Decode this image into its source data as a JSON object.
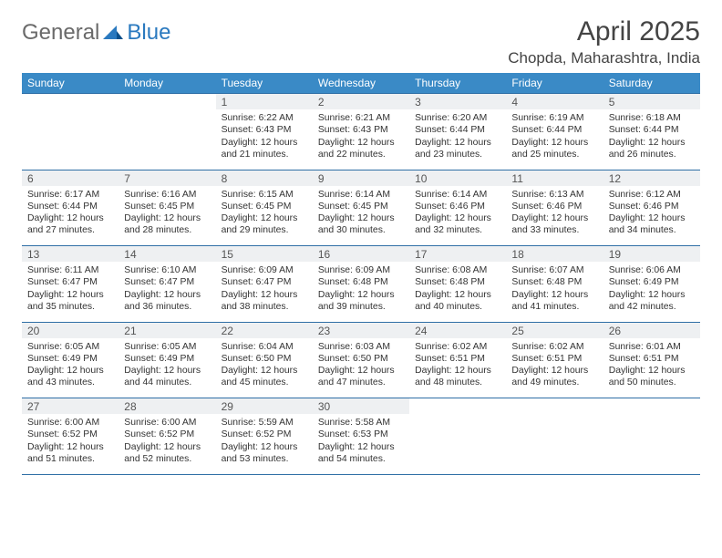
{
  "logo": {
    "text1": "General",
    "text2": "Blue"
  },
  "title": "April 2025",
  "location": "Chopda, Maharashtra, India",
  "colors": {
    "header_bg": "#3a8ac6",
    "rule": "#2f6fa6",
    "daynum_bg": "#eef0f2",
    "logo_gray": "#6a6a6a",
    "logo_blue": "#2a79bf"
  },
  "weekdays": [
    "Sunday",
    "Monday",
    "Tuesday",
    "Wednesday",
    "Thursday",
    "Friday",
    "Saturday"
  ],
  "weeks": [
    [
      null,
      null,
      {
        "n": "1",
        "sunrise": "6:22 AM",
        "sunset": "6:43 PM",
        "daylight": "12 hours and 21 minutes."
      },
      {
        "n": "2",
        "sunrise": "6:21 AM",
        "sunset": "6:43 PM",
        "daylight": "12 hours and 22 minutes."
      },
      {
        "n": "3",
        "sunrise": "6:20 AM",
        "sunset": "6:44 PM",
        "daylight": "12 hours and 23 minutes."
      },
      {
        "n": "4",
        "sunrise": "6:19 AM",
        "sunset": "6:44 PM",
        "daylight": "12 hours and 25 minutes."
      },
      {
        "n": "5",
        "sunrise": "6:18 AM",
        "sunset": "6:44 PM",
        "daylight": "12 hours and 26 minutes."
      }
    ],
    [
      {
        "n": "6",
        "sunrise": "6:17 AM",
        "sunset": "6:44 PM",
        "daylight": "12 hours and 27 minutes."
      },
      {
        "n": "7",
        "sunrise": "6:16 AM",
        "sunset": "6:45 PM",
        "daylight": "12 hours and 28 minutes."
      },
      {
        "n": "8",
        "sunrise": "6:15 AM",
        "sunset": "6:45 PM",
        "daylight": "12 hours and 29 minutes."
      },
      {
        "n": "9",
        "sunrise": "6:14 AM",
        "sunset": "6:45 PM",
        "daylight": "12 hours and 30 minutes."
      },
      {
        "n": "10",
        "sunrise": "6:14 AM",
        "sunset": "6:46 PM",
        "daylight": "12 hours and 32 minutes."
      },
      {
        "n": "11",
        "sunrise": "6:13 AM",
        "sunset": "6:46 PM",
        "daylight": "12 hours and 33 minutes."
      },
      {
        "n": "12",
        "sunrise": "6:12 AM",
        "sunset": "6:46 PM",
        "daylight": "12 hours and 34 minutes."
      }
    ],
    [
      {
        "n": "13",
        "sunrise": "6:11 AM",
        "sunset": "6:47 PM",
        "daylight": "12 hours and 35 minutes."
      },
      {
        "n": "14",
        "sunrise": "6:10 AM",
        "sunset": "6:47 PM",
        "daylight": "12 hours and 36 minutes."
      },
      {
        "n": "15",
        "sunrise": "6:09 AM",
        "sunset": "6:47 PM",
        "daylight": "12 hours and 38 minutes."
      },
      {
        "n": "16",
        "sunrise": "6:09 AM",
        "sunset": "6:48 PM",
        "daylight": "12 hours and 39 minutes."
      },
      {
        "n": "17",
        "sunrise": "6:08 AM",
        "sunset": "6:48 PM",
        "daylight": "12 hours and 40 minutes."
      },
      {
        "n": "18",
        "sunrise": "6:07 AM",
        "sunset": "6:48 PM",
        "daylight": "12 hours and 41 minutes."
      },
      {
        "n": "19",
        "sunrise": "6:06 AM",
        "sunset": "6:49 PM",
        "daylight": "12 hours and 42 minutes."
      }
    ],
    [
      {
        "n": "20",
        "sunrise": "6:05 AM",
        "sunset": "6:49 PM",
        "daylight": "12 hours and 43 minutes."
      },
      {
        "n": "21",
        "sunrise": "6:05 AM",
        "sunset": "6:49 PM",
        "daylight": "12 hours and 44 minutes."
      },
      {
        "n": "22",
        "sunrise": "6:04 AM",
        "sunset": "6:50 PM",
        "daylight": "12 hours and 45 minutes."
      },
      {
        "n": "23",
        "sunrise": "6:03 AM",
        "sunset": "6:50 PM",
        "daylight": "12 hours and 47 minutes."
      },
      {
        "n": "24",
        "sunrise": "6:02 AM",
        "sunset": "6:51 PM",
        "daylight": "12 hours and 48 minutes."
      },
      {
        "n": "25",
        "sunrise": "6:02 AM",
        "sunset": "6:51 PM",
        "daylight": "12 hours and 49 minutes."
      },
      {
        "n": "26",
        "sunrise": "6:01 AM",
        "sunset": "6:51 PM",
        "daylight": "12 hours and 50 minutes."
      }
    ],
    [
      {
        "n": "27",
        "sunrise": "6:00 AM",
        "sunset": "6:52 PM",
        "daylight": "12 hours and 51 minutes."
      },
      {
        "n": "28",
        "sunrise": "6:00 AM",
        "sunset": "6:52 PM",
        "daylight": "12 hours and 52 minutes."
      },
      {
        "n": "29",
        "sunrise": "5:59 AM",
        "sunset": "6:52 PM",
        "daylight": "12 hours and 53 minutes."
      },
      {
        "n": "30",
        "sunrise": "5:58 AM",
        "sunset": "6:53 PM",
        "daylight": "12 hours and 54 minutes."
      },
      null,
      null,
      null
    ]
  ]
}
